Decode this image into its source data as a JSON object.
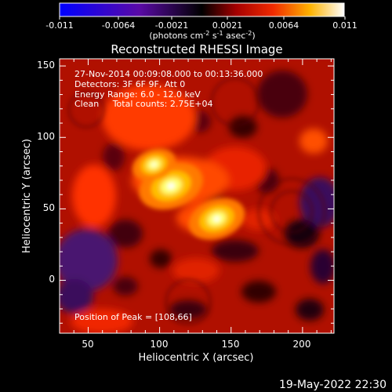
{
  "colorbar": {
    "ticks": [
      "-0.011",
      "-0.0064",
      "-0.0021",
      "0.0021",
      "0.0064",
      "0.011"
    ],
    "unit_prefix": "(photons cm",
    "unit_exp1": "-2",
    "unit_mid": " s",
    "unit_exp2": "-1",
    "unit_mid2": " asec",
    "unit_exp3": "-2",
    "unit_suffix": ")"
  },
  "chart_data": {
    "type": "heatmap",
    "title": "Reconstructed RHESSI Image",
    "xlabel": "Heliocentric X (arcsec)",
    "ylabel": "Heliocentric Y (arcsec)",
    "xlim": [
      30,
      222
    ],
    "ylim": [
      -37,
      155
    ],
    "xticks": [
      "50",
      "100",
      "150",
      "200"
    ],
    "yticks": [
      "0",
      "50",
      "100",
      "150"
    ],
    "zlim": [
      -0.011,
      0.011
    ],
    "colormap": "RHESSI red-temperature (blue-purple-black-red-orange-yellow-white)",
    "annotations": [
      "27-Nov-2014 00:09:08.000 to 00:13:36.000",
      "Detectors: 3F 6F 9F, Att 0",
      "Energy Range: 6.0 - 12.0 keV",
      "Clean     Total counts: 2.75E+04"
    ],
    "peak_label": "Position of Peak = [108,66]",
    "peak_position": [
      108,
      66
    ],
    "sources": [
      {
        "x": 108,
        "y": 66,
        "level": 1.0
      },
      {
        "x": 96,
        "y": 81,
        "level": 0.6
      },
      {
        "x": 140,
        "y": 43,
        "level": 0.85
      }
    ]
  },
  "footer": {
    "timestamp": "19-May-2022 22:30"
  }
}
